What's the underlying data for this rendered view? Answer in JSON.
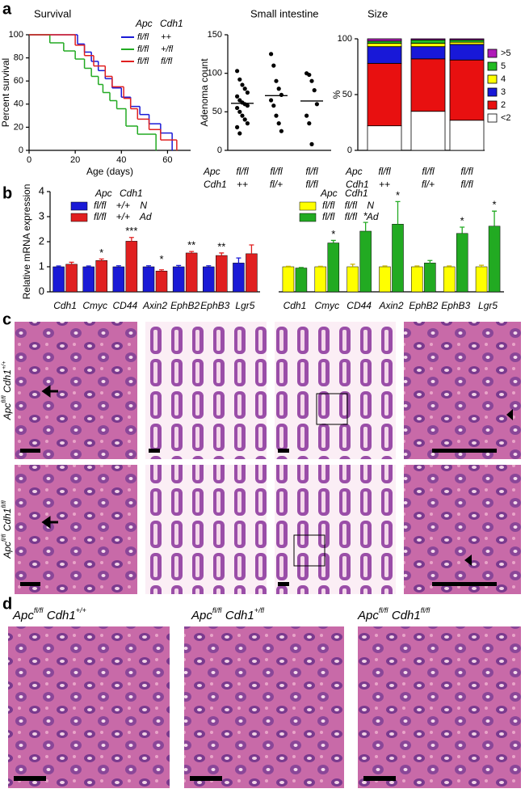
{
  "panel_labels": [
    "a",
    "b",
    "c",
    "d"
  ],
  "chart_data": [
    {
      "type": "line",
      "step": true,
      "title": "Survival",
      "xlabel": "Age (days)",
      "ylabel": "Percent survival",
      "xlim": [
        0,
        70
      ],
      "xticks": [
        0,
        20,
        40,
        60
      ],
      "ylim": [
        0,
        100
      ],
      "yticks": [
        0,
        20,
        40,
        60,
        80,
        100
      ],
      "legend_header": [
        "Apc",
        "Cdh1"
      ],
      "series": [
        {
          "name": "fl/fl ++",
          "color": "#1a1ad6",
          "x": [
            0,
            21,
            24,
            27,
            30,
            33,
            36,
            40,
            44,
            48,
            52,
            57,
            62
          ],
          "values": [
            100,
            92,
            85,
            77,
            69,
            62,
            54,
            46,
            38,
            31,
            23,
            15,
            0
          ]
        },
        {
          "name": "fl/fl +/fl",
          "color": "#22aa22",
          "x": [
            0,
            9,
            15,
            20,
            24,
            27,
            30,
            32,
            35,
            38,
            42,
            47,
            55
          ],
          "values": [
            100,
            93,
            86,
            79,
            71,
            64,
            57,
            50,
            43,
            36,
            21,
            14,
            0
          ]
        },
        {
          "name": "fl/fl fl/fl",
          "color": "#e02020",
          "x": [
            0,
            20,
            24,
            28,
            33,
            36,
            41,
            44,
            47,
            52,
            57,
            64
          ],
          "values": [
            100,
            91,
            82,
            73,
            64,
            55,
            45,
            36,
            27,
            18,
            9,
            0
          ]
        }
      ]
    },
    {
      "type": "dot",
      "title": "Small intestine",
      "ylabel": "Adenoma count",
      "ylim": [
        0,
        150
      ],
      "yticks": [
        0,
        50,
        100,
        150
      ],
      "row_labels": [
        "Apc",
        "Cdh1"
      ],
      "apc_labels": [
        "fl/fl",
        "fl/fl",
        "fl/fl"
      ],
      "cdh1_labels": [
        "++",
        "fl/+",
        "fl/fl"
      ],
      "values": [
        [
          103,
          92,
          85,
          80,
          75,
          70,
          65,
          62,
          60,
          58,
          55,
          50,
          45,
          40,
          35,
          30,
          22
        ],
        [
          125,
          110,
          90,
          80,
          72,
          65,
          58,
          45,
          35,
          25
        ],
        [
          100,
          98,
          90,
          78,
          60,
          45,
          35,
          8
        ]
      ],
      "means": [
        61,
        71,
        64
      ]
    },
    {
      "type": "bar",
      "stacked": true,
      "title": "Size",
      "ylabel": "%",
      "ylim": [
        0,
        100
      ],
      "yticks": [
        0,
        50,
        100
      ],
      "row_labels": [
        "Apc",
        "Cdh1"
      ],
      "apc_labels": [
        "fl/fl",
        "fl/fl",
        "fl/fl"
      ],
      "cdh1_labels": [
        "++",
        "fl/+",
        "fl/fl"
      ],
      "series": [
        {
          "name": "<2",
          "color": "#ffffff",
          "values": [
            22,
            35,
            27
          ]
        },
        {
          "name": "2",
          "color": "#e81010",
          "values": [
            56,
            47,
            54
          ]
        },
        {
          "name": "3",
          "color": "#1818d8",
          "values": [
            15,
            11,
            14
          ]
        },
        {
          "name": "4",
          "color": "#ffff00",
          "values": [
            3,
            3,
            2
          ]
        },
        {
          "name": "5",
          "color": "#22bb22",
          "values": [
            2,
            3,
            2
          ]
        },
        {
          "name": ">5",
          "color": "#b01ab8",
          "values": [
            2,
            1,
            1
          ]
        }
      ]
    },
    {
      "type": "bar",
      "ylabel": "Relative mRNA expression",
      "ylim": [
        0,
        4
      ],
      "yticks": [
        0,
        1,
        2,
        3,
        4
      ],
      "legend_header": [
        "Apc",
        "Cdh1"
      ],
      "categories": [
        "Cdh1",
        "Cmyc",
        "CD44",
        "Axin2",
        "EphB2",
        "EphB3",
        "Lgr5"
      ],
      "series": [
        {
          "name": "fl/fl +/+ N",
          "color": "#1a1ad6",
          "values": [
            1,
            1,
            1,
            1,
            1,
            1,
            1.15
          ],
          "errors": [
            0.03,
            0.03,
            0.04,
            0.04,
            0.05,
            0.04,
            0.2
          ]
        },
        {
          "name": "fl/fl +/+ Ad",
          "color": "#e02020",
          "values": [
            1.1,
            1.25,
            2.02,
            0.83,
            1.55,
            1.45,
            1.52
          ],
          "errors": [
            0.08,
            0.06,
            0.15,
            0.05,
            0.06,
            0.1,
            0.35
          ]
        }
      ],
      "significance": [
        null,
        "*",
        "***",
        "*",
        "**",
        "**",
        null
      ]
    },
    {
      "type": "bar",
      "ylim": [
        0,
        4
      ],
      "legend_header": [
        "Apc",
        "Cdh1"
      ],
      "categories": [
        "Cdh1",
        "Cmyc",
        "CD44",
        "Axin2",
        "EphB2",
        "EphB3",
        "Lgr5"
      ],
      "series": [
        {
          "name": "fl/fl fl/fl N",
          "color": "#ffff00",
          "values": [
            1,
            1,
            1,
            1,
            1,
            1,
            1
          ],
          "errors": [
            0.02,
            0.02,
            0.1,
            0.03,
            0.03,
            0.03,
            0.06
          ]
        },
        {
          "name": "fl/fl fl/fl Ad",
          "color": "#22aa22",
          "values": [
            0.95,
            1.95,
            2.42,
            2.7,
            1.15,
            2.33,
            2.62
          ],
          "errors": [
            0.02,
            0.1,
            0.35,
            0.9,
            0.1,
            0.25,
            0.6
          ]
        }
      ],
      "significance": [
        null,
        "*",
        "*",
        "*",
        null,
        "*",
        "*"
      ]
    }
  ],
  "c": {
    "row_labels": [
      [
        "Apc",
        "fl/fl",
        "Cdh1",
        "+/+"
      ],
      [
        "Apc",
        "fl/fl",
        "Cdh1",
        "fl/fl"
      ]
    ]
  },
  "d": {
    "titles": [
      [
        "Apc",
        "fl/fl",
        "Cdh1",
        "+/+"
      ],
      [
        "Apc",
        "fl/fl",
        "Cdh1",
        "+/fl"
      ],
      [
        "Apc",
        "fl/fl",
        "Cdh1",
        "fl/fl"
      ]
    ]
  }
}
